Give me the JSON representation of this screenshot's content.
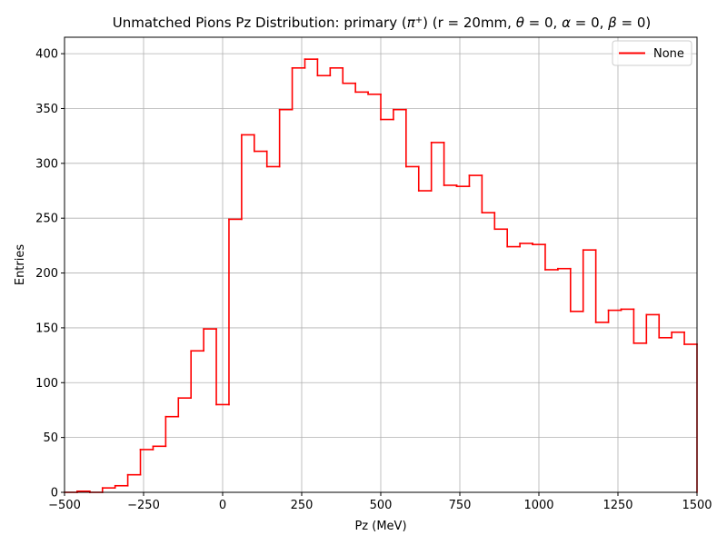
{
  "chart_data": {
    "type": "histogram",
    "title": "Unmatched Pions Pz Distribution: primary (π⁺) (r = 20mm, θ = 0, α = 0, β = 0)",
    "title_parts": {
      "prefix": "Unmatched Pions Pz Distribution: primary (",
      "pi": "π",
      "pi_sup": "+",
      "middle": ") (r = 20mm, ",
      "theta": "θ",
      "rest1": " = 0, ",
      "alpha": "α",
      "rest2": " = 0, ",
      "beta": "β",
      "rest3": " = 0)"
    },
    "xlabel": "Pz (MeV)",
    "ylabel": "Entries",
    "xlim": [
      -500,
      1500
    ],
    "ylim": [
      0,
      415
    ],
    "x_ticks": [
      -500,
      -250,
      0,
      250,
      500,
      750,
      1000,
      1250,
      1500
    ],
    "y_ticks": [
      0,
      50,
      100,
      150,
      200,
      250,
      300,
      350,
      400
    ],
    "grid": true,
    "legend": {
      "position": "top-right",
      "entries": [
        "None"
      ]
    },
    "series": [
      {
        "name": "None",
        "color": "#ff0000",
        "bin_edges": [
          -500,
          -460,
          -420,
          -380,
          -340,
          -300,
          -260,
          -220,
          -180,
          -140,
          -100,
          -60,
          -20,
          20,
          60,
          100,
          140,
          180,
          220,
          260,
          300,
          340,
          380,
          420,
          460,
          500,
          540,
          580,
          620,
          660,
          700,
          740,
          780,
          820,
          860,
          900,
          940,
          980,
          1020,
          1060,
          1100,
          1140,
          1180,
          1220,
          1260,
          1300,
          1340,
          1380,
          1420,
          1460,
          1500
        ],
        "counts": [
          0,
          1,
          0,
          4,
          6,
          16,
          39,
          42,
          69,
          86,
          129,
          149,
          80,
          249,
          326,
          311,
          297,
          349,
          387,
          395,
          380,
          387,
          373,
          365,
          363,
          340,
          349,
          297,
          275,
          319,
          280,
          279,
          289,
          255,
          240,
          224,
          227,
          226,
          203,
          204,
          165,
          221,
          155,
          166,
          167,
          136,
          162,
          141,
          146,
          135
        ]
      }
    ]
  }
}
